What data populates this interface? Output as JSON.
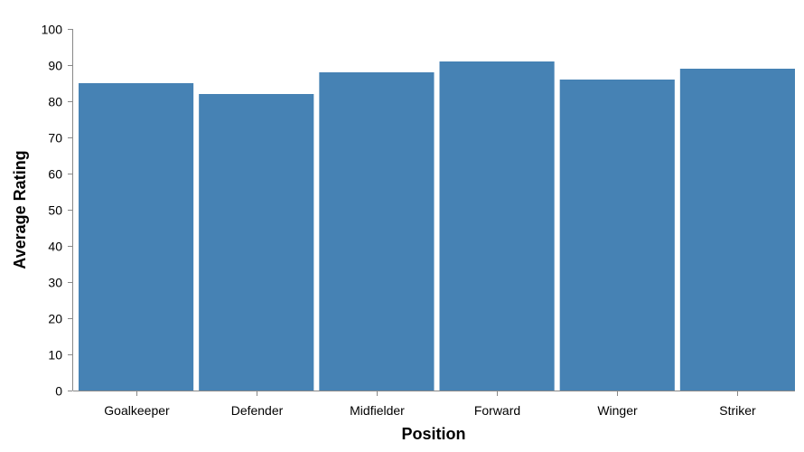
{
  "chart_data": {
    "type": "bar",
    "categories": [
      "Goalkeeper",
      "Defender",
      "Midfielder",
      "Forward",
      "Winger",
      "Striker"
    ],
    "values": [
      85,
      82,
      88,
      91,
      86,
      89
    ],
    "title": "",
    "xlabel": "Position",
    "ylabel": "Average Rating",
    "ylim": [
      0,
      100
    ],
    "yticks": [
      0,
      10,
      20,
      30,
      40,
      50,
      60,
      70,
      80,
      90,
      100
    ],
    "grid": false,
    "bar_color": "#4682b4"
  }
}
